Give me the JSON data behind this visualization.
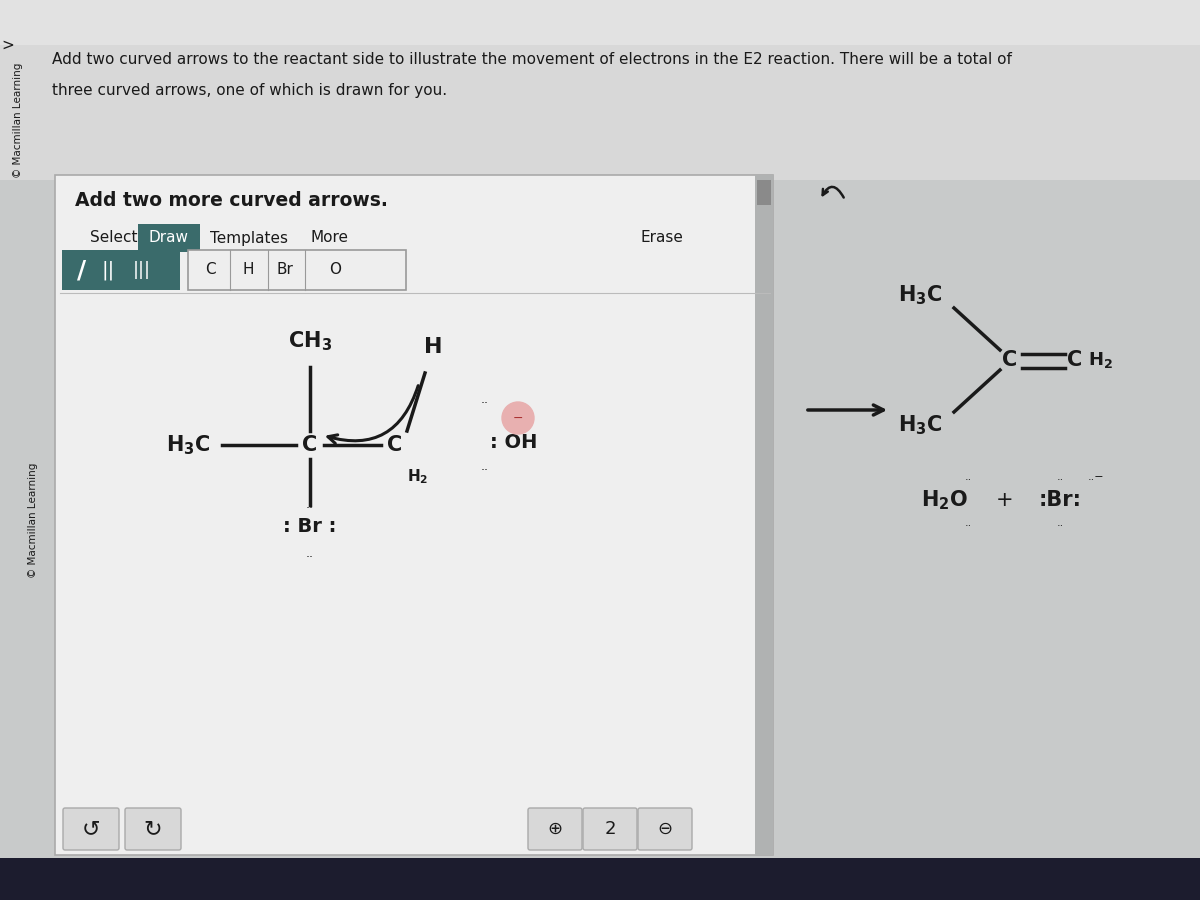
{
  "bg_outer": "#c8caca",
  "bg_top_bar": "#e8e8e8",
  "panel_bg": "#f0f0f0",
  "panel_inner_bg": "#f4f4f4",
  "taskbar_bg": "#1c1c2e",
  "dark_color": "#1a1a1a",
  "draw_btn_color": "#3a6b6b",
  "icon_box_color": "#3a6b6b",
  "atom_btn_border": "#999999",
  "atom_btn_bg": "#eeeeee",
  "scrollbar_bg": "#b0b2b2",
  "scrollbar_thumb": "#8a8a8a",
  "undo_btn_bg": "#d8d8d8",
  "zoom_btn_bg": "#d8d8d8",
  "macmillan_text": "© Macmillan Learning",
  "title_text1": "Add two curved arrows to the reactant side to illustrate the movement of electrons in the E2 reaction. There will be a total of",
  "title_text2": "three curved arrows, one of which is drawn for you.",
  "subtitle": "Add two more curved arrows.",
  "panel_border": "#aaaaaa",
  "oh_pink": "#e8b0b0",
  "reaction_arrow_color": "#1a1a1a"
}
